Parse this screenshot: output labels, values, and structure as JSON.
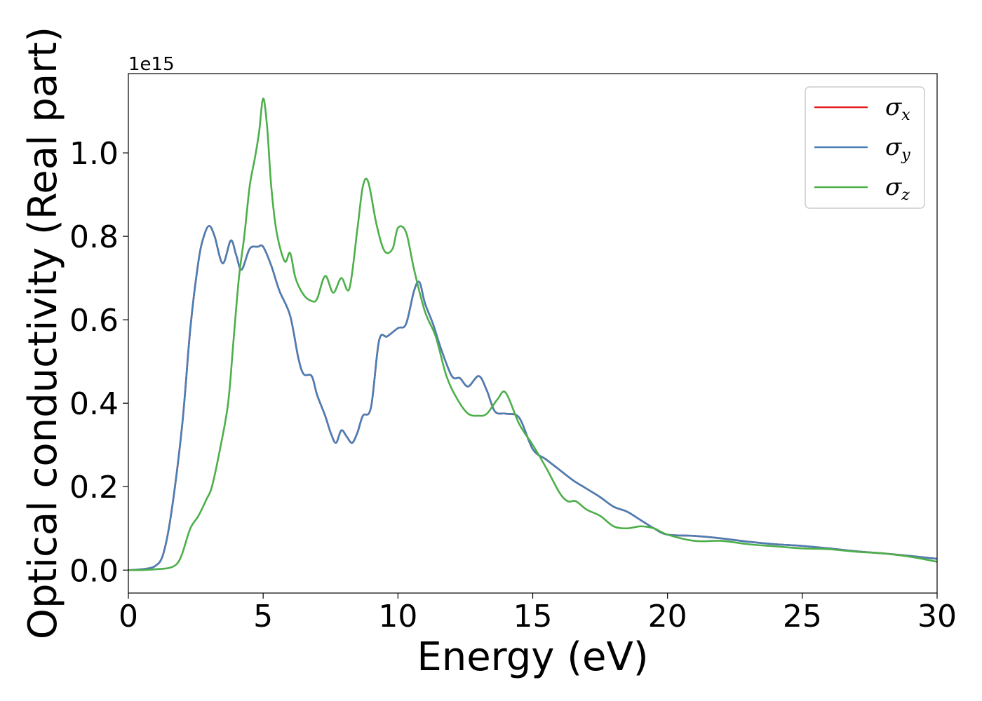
{
  "chart_data": {
    "type": "line",
    "xlabel": "Energy (eV)",
    "ylabel": "Optical conductivity (Real part)",
    "y_scale_label": "1e15",
    "y_scale": 1000000000000000.0,
    "xlim": [
      0,
      30
    ],
    "ylim": [
      -0.055,
      1.19
    ],
    "x_ticks": [
      0,
      5,
      10,
      15,
      20,
      25,
      30
    ],
    "x_tick_labels": [
      "0",
      "5",
      "10",
      "15",
      "20",
      "25",
      "30"
    ],
    "y_ticks": [
      0.0,
      0.2,
      0.4,
      0.6,
      0.8,
      1.0
    ],
    "y_tick_labels": [
      "0.0",
      "0.2",
      "0.4",
      "0.6",
      "0.8",
      "1.0"
    ],
    "grid": false,
    "legend_position": "top-right",
    "series": [
      {
        "name": "σx",
        "symbol": "σ",
        "subscript": "x",
        "color": "#e41a1c",
        "x": [
          0,
          0.5,
          1.0,
          1.3,
          1.6,
          2.0,
          2.3,
          2.6,
          2.8,
          3.0,
          3.2,
          3.5,
          3.8,
          4.0,
          4.2,
          4.5,
          4.8,
          5.0,
          5.3,
          5.6,
          6.0,
          6.3,
          6.5,
          6.8,
          7.0,
          7.3,
          7.5,
          7.7,
          7.9,
          8.1,
          8.3,
          8.5,
          8.7,
          9.0,
          9.3,
          9.6,
          10.0,
          10.3,
          10.6,
          10.8,
          11.0,
          11.3,
          11.6,
          12.0,
          12.3,
          12.6,
          13.0,
          13.3,
          13.6,
          14.0,
          14.5,
          15.0,
          15.5,
          16.0,
          16.5,
          17.0,
          17.5,
          18.0,
          18.5,
          19.0,
          19.5,
          20.0,
          21.0,
          22.0,
          23.0,
          24.0,
          25.0,
          26.0,
          27.0,
          28.0,
          29.0,
          30.0
        ],
        "values": [
          0.0,
          0.002,
          0.01,
          0.04,
          0.14,
          0.35,
          0.58,
          0.74,
          0.8,
          0.825,
          0.8,
          0.735,
          0.79,
          0.755,
          0.72,
          0.77,
          0.775,
          0.775,
          0.73,
          0.67,
          0.61,
          0.51,
          0.47,
          0.465,
          0.42,
          0.37,
          0.33,
          0.305,
          0.335,
          0.32,
          0.305,
          0.33,
          0.37,
          0.39,
          0.55,
          0.56,
          0.58,
          0.59,
          0.67,
          0.69,
          0.64,
          0.59,
          0.53,
          0.465,
          0.46,
          0.44,
          0.465,
          0.43,
          0.38,
          0.375,
          0.365,
          0.29,
          0.265,
          0.24,
          0.215,
          0.195,
          0.175,
          0.152,
          0.14,
          0.12,
          0.1,
          0.085,
          0.082,
          0.076,
          0.068,
          0.062,
          0.058,
          0.052,
          0.045,
          0.04,
          0.034,
          0.027
        ]
      },
      {
        "name": "σy",
        "symbol": "σ",
        "subscript": "y",
        "color": "#4a7fb5",
        "x": [
          0,
          0.5,
          1.0,
          1.3,
          1.6,
          2.0,
          2.3,
          2.6,
          2.8,
          3.0,
          3.2,
          3.5,
          3.8,
          4.0,
          4.2,
          4.5,
          4.8,
          5.0,
          5.3,
          5.6,
          6.0,
          6.3,
          6.5,
          6.8,
          7.0,
          7.3,
          7.5,
          7.7,
          7.9,
          8.1,
          8.3,
          8.5,
          8.7,
          9.0,
          9.3,
          9.6,
          10.0,
          10.3,
          10.6,
          10.8,
          11.0,
          11.3,
          11.6,
          12.0,
          12.3,
          12.6,
          13.0,
          13.3,
          13.6,
          14.0,
          14.5,
          15.0,
          15.5,
          16.0,
          16.5,
          17.0,
          17.5,
          18.0,
          18.5,
          19.0,
          19.5,
          20.0,
          21.0,
          22.0,
          23.0,
          24.0,
          25.0,
          26.0,
          27.0,
          28.0,
          29.0,
          30.0
        ],
        "values": [
          0.0,
          0.002,
          0.01,
          0.04,
          0.14,
          0.35,
          0.58,
          0.74,
          0.8,
          0.825,
          0.8,
          0.735,
          0.79,
          0.755,
          0.72,
          0.77,
          0.775,
          0.775,
          0.73,
          0.67,
          0.61,
          0.51,
          0.47,
          0.465,
          0.42,
          0.37,
          0.33,
          0.305,
          0.335,
          0.32,
          0.305,
          0.33,
          0.37,
          0.39,
          0.55,
          0.56,
          0.58,
          0.59,
          0.67,
          0.69,
          0.64,
          0.59,
          0.53,
          0.465,
          0.46,
          0.44,
          0.465,
          0.43,
          0.38,
          0.375,
          0.365,
          0.29,
          0.265,
          0.24,
          0.215,
          0.195,
          0.175,
          0.152,
          0.14,
          0.12,
          0.1,
          0.085,
          0.082,
          0.076,
          0.068,
          0.062,
          0.058,
          0.052,
          0.045,
          0.04,
          0.034,
          0.027
        ]
      },
      {
        "name": "σz",
        "symbol": "σ",
        "subscript": "z",
        "color": "#4daf4a",
        "x": [
          0,
          0.5,
          1.0,
          1.5,
          1.8,
          2.0,
          2.3,
          2.6,
          2.9,
          3.1,
          3.4,
          3.7,
          3.9,
          4.1,
          4.3,
          4.5,
          4.7,
          4.85,
          5.0,
          5.15,
          5.3,
          5.5,
          5.8,
          6.0,
          6.2,
          6.5,
          6.8,
          7.0,
          7.3,
          7.6,
          7.9,
          8.2,
          8.5,
          8.7,
          8.9,
          9.2,
          9.5,
          9.8,
          10.0,
          10.3,
          10.6,
          11.0,
          11.4,
          11.8,
          12.2,
          12.6,
          13.0,
          13.3,
          13.7,
          14.0,
          14.5,
          15.0,
          15.5,
          16.0,
          16.3,
          16.6,
          17.0,
          17.5,
          18.0,
          18.5,
          19.0,
          19.5,
          20.0,
          21.0,
          22.0,
          23.0,
          24.0,
          25.0,
          26.0,
          27.0,
          28.0,
          29.0,
          30.0
        ],
        "values": [
          0.0,
          0.0,
          0.002,
          0.005,
          0.015,
          0.04,
          0.1,
          0.13,
          0.17,
          0.2,
          0.29,
          0.4,
          0.55,
          0.7,
          0.8,
          0.92,
          0.99,
          1.05,
          1.13,
          1.06,
          0.92,
          0.81,
          0.74,
          0.76,
          0.7,
          0.66,
          0.645,
          0.65,
          0.705,
          0.665,
          0.7,
          0.675,
          0.82,
          0.92,
          0.93,
          0.83,
          0.765,
          0.77,
          0.82,
          0.81,
          0.72,
          0.62,
          0.56,
          0.465,
          0.41,
          0.375,
          0.37,
          0.375,
          0.41,
          0.425,
          0.35,
          0.3,
          0.245,
          0.185,
          0.165,
          0.165,
          0.145,
          0.13,
          0.105,
          0.1,
          0.105,
          0.1,
          0.085,
          0.07,
          0.07,
          0.062,
          0.057,
          0.052,
          0.05,
          0.044,
          0.04,
          0.032,
          0.02
        ]
      }
    ]
  }
}
